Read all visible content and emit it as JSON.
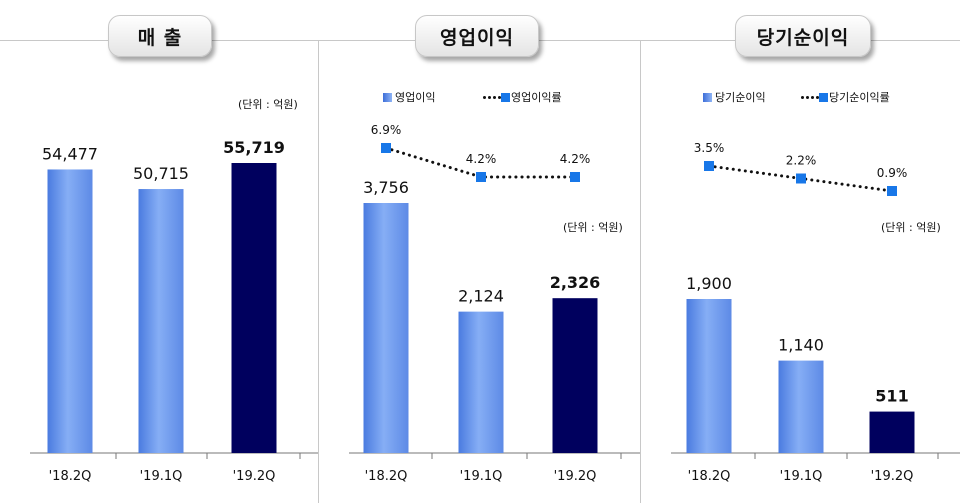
{
  "chart_data": [
    {
      "type": "bar",
      "title": "매 출",
      "unit": "(단위 : 억원)",
      "categories": [
        "'18.2Q",
        "'19.1Q",
        "'19.2Q"
      ],
      "values": [
        54477,
        50715,
        55719
      ],
      "value_labels": [
        "54,477",
        "50,715",
        "55,719"
      ],
      "highlight_last": true,
      "colors": {
        "bar": "#6f9bee",
        "highlight": "#00005e"
      }
    },
    {
      "type": "bar",
      "title": "영업이익",
      "unit": "(단위 : 억원)",
      "categories": [
        "'18.2Q",
        "'19.1Q",
        "'19.2Q"
      ],
      "values": [
        3756,
        2124,
        2326
      ],
      "value_labels": [
        "3,756",
        "2,124",
        "2,326"
      ],
      "highlight_last": true,
      "colors": {
        "bar": "#6f9bee",
        "highlight": "#00005e",
        "line": "#1877e8"
      },
      "legend": [
        "영업이익",
        "영업이익률"
      ],
      "line_series": {
        "name": "영업이익률",
        "values": [
          6.9,
          4.2,
          4.2
        ],
        "labels": [
          "6.9%",
          "4.2%",
          "4.2%"
        ]
      }
    },
    {
      "type": "bar",
      "title": "당기순이익",
      "unit": "(단위 : 억원)",
      "categories": [
        "'18.2Q",
        "'19.1Q",
        "'19.2Q"
      ],
      "values": [
        1900,
        1140,
        511
      ],
      "value_labels": [
        "1,900",
        "1,140",
        "511"
      ],
      "highlight_last": true,
      "colors": {
        "bar": "#6f9bee",
        "highlight": "#00005e",
        "line": "#1877e8"
      },
      "legend": [
        "당기순이익",
        "당기순이익률"
      ],
      "line_series": {
        "name": "당기순이익률",
        "values": [
          3.5,
          2.2,
          0.9
        ],
        "labels": [
          "3.5%",
          "2.2%",
          "0.9%"
        ]
      }
    }
  ]
}
